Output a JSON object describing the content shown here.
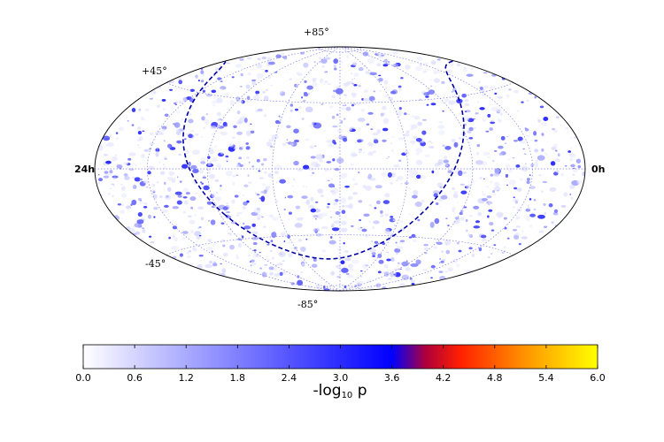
{
  "chart_data": {
    "type": "heatmap",
    "projection": "hammer-aitoff",
    "title": "",
    "colormap": {
      "name": "white-blue-red-yellow",
      "stops": [
        {
          "value": 0.0,
          "color": "#ffffff"
        },
        {
          "value": 3.6,
          "color": "#0000ff"
        },
        {
          "value": 4.0,
          "color": "#b0003a"
        },
        {
          "value": 4.4,
          "color": "#ff2000"
        },
        {
          "value": 5.2,
          "color": "#ff9a00"
        },
        {
          "value": 6.0,
          "color": "#ffff00"
        }
      ]
    },
    "range": [
      0.0,
      6.0
    ],
    "observed_max": 3.0,
    "colorbar": {
      "label_main": "-log",
      "label_sub": "10",
      "label_tail": " p",
      "ticks": [
        "0.0",
        "0.6",
        "1.2",
        "1.8",
        "2.4",
        "3.0",
        "3.6",
        "4.2",
        "4.8",
        "5.4",
        "6.0"
      ],
      "tick_values": [
        0.0,
        0.6,
        1.2,
        1.8,
        2.4,
        3.0,
        3.6,
        4.2,
        4.8,
        5.4,
        6.0
      ]
    },
    "map_labels": {
      "top": "+85°",
      "upper_left": "+45°",
      "lower_left": "-45°",
      "bottom": "-85°",
      "left": "24h",
      "right": "0h"
    },
    "graticule": {
      "ra_lines_hours": [
        0,
        3,
        6,
        9,
        12,
        15,
        18,
        21,
        24
      ],
      "dec_lines_deg": [
        -85,
        -45,
        0,
        45,
        85
      ],
      "style": "dotted",
      "color": "#8080e0"
    },
    "overlay_curve": {
      "style": "dashed",
      "color": "#0000a0",
      "description": "galactic plane"
    },
    "grid": true
  }
}
